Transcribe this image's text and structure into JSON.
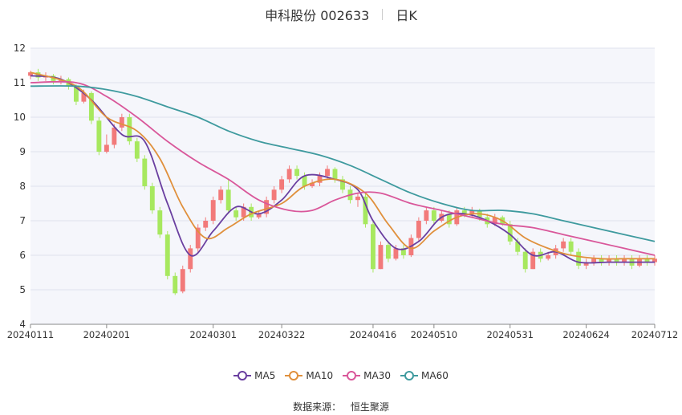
{
  "title": {
    "name": "申科股份 002633",
    "period": "日K"
  },
  "source": {
    "label": "数据来源：",
    "value": "恒生聚源"
  },
  "colors": {
    "up": "#f27a7a",
    "down": "#a7e85f",
    "MA5": "#6a3fa0",
    "MA10": "#e0903c",
    "MA30": "#d9579a",
    "MA60": "#3e9a9e",
    "plot_bg": "#f5f6fb",
    "grid": "#dfe3ee"
  },
  "chart_data": {
    "type": "candlestick",
    "title": "申科股份 002633",
    "subtitle": "日K",
    "ylim": [
      4,
      12
    ],
    "yticks": [
      4,
      5,
      6,
      7,
      8,
      9,
      10,
      11,
      12
    ],
    "xticks": [
      "20240111",
      "20240201",
      "20240301",
      "20240322",
      "20240416",
      "20240510",
      "20240531",
      "20240624",
      "20240712"
    ],
    "legend": [
      "MA5",
      "MA10",
      "MA30",
      "MA60"
    ],
    "legend_position": "bottom",
    "candles": [
      [
        11.2,
        11.3,
        11.1,
        11.35
      ],
      [
        11.3,
        11.15,
        11.05,
        11.4
      ],
      [
        11.15,
        11.2,
        11.05,
        11.3
      ],
      [
        11.2,
        11.05,
        10.95,
        11.25
      ],
      [
        11.05,
        11.1,
        10.95,
        11.2
      ],
      [
        11.1,
        10.9,
        10.8,
        11.15
      ],
      [
        10.9,
        10.45,
        10.35,
        10.95
      ],
      [
        10.45,
        10.7,
        10.4,
        10.8
      ],
      [
        10.7,
        9.9,
        9.8,
        10.75
      ],
      [
        9.9,
        9.0,
        8.9,
        10.0
      ],
      [
        9.0,
        9.2,
        8.95,
        9.5
      ],
      [
        9.2,
        9.7,
        9.1,
        9.8
      ],
      [
        9.7,
        10.0,
        9.6,
        10.1
      ],
      [
        10.0,
        9.3,
        9.2,
        10.1
      ],
      [
        9.3,
        8.8,
        8.7,
        9.4
      ],
      [
        8.8,
        8.0,
        7.9,
        8.9
      ],
      [
        8.0,
        7.3,
        7.2,
        8.1
      ],
      [
        7.3,
        6.6,
        6.5,
        7.4
      ],
      [
        6.6,
        5.4,
        5.3,
        6.7
      ],
      [
        5.4,
        4.9,
        4.85,
        5.5
      ],
      [
        4.95,
        5.6,
        4.9,
        5.7
      ],
      [
        5.6,
        6.2,
        5.5,
        6.3
      ],
      [
        6.2,
        6.8,
        6.1,
        6.9
      ],
      [
        6.8,
        7.0,
        6.7,
        7.1
      ],
      [
        7.0,
        7.6,
        6.9,
        7.7
      ],
      [
        7.6,
        7.9,
        7.5,
        8.0
      ],
      [
        7.9,
        7.3,
        7.2,
        8.2
      ],
      [
        7.3,
        7.1,
        7.0,
        7.4
      ],
      [
        7.1,
        7.4,
        7.0,
        7.5
      ],
      [
        7.4,
        7.1,
        7.0,
        7.5
      ],
      [
        7.1,
        7.2,
        7.05,
        7.3
      ],
      [
        7.2,
        7.6,
        7.1,
        7.7
      ],
      [
        7.6,
        7.9,
        7.5,
        8.0
      ],
      [
        7.9,
        8.2,
        7.8,
        8.3
      ],
      [
        8.2,
        8.5,
        8.1,
        8.6
      ],
      [
        8.5,
        8.3,
        8.2,
        8.6
      ],
      [
        8.3,
        8.0,
        7.9,
        8.4
      ],
      [
        8.0,
        8.1,
        7.95,
        8.2
      ],
      [
        8.1,
        8.3,
        8.0,
        8.4
      ],
      [
        8.3,
        8.5,
        8.2,
        8.6
      ],
      [
        8.5,
        8.2,
        8.1,
        8.55
      ],
      [
        8.2,
        7.9,
        7.8,
        8.3
      ],
      [
        7.9,
        7.6,
        7.5,
        8.0
      ],
      [
        7.6,
        7.7,
        7.4,
        7.8
      ],
      [
        7.7,
        6.9,
        6.8,
        7.8
      ],
      [
        6.9,
        5.6,
        5.5,
        7.0
      ],
      [
        5.6,
        6.3,
        5.6,
        6.4
      ],
      [
        6.3,
        5.9,
        5.8,
        6.4
      ],
      [
        5.9,
        6.2,
        5.85,
        6.3
      ],
      [
        6.2,
        6.0,
        5.9,
        6.3
      ],
      [
        6.0,
        6.5,
        5.95,
        6.6
      ],
      [
        6.5,
        7.0,
        6.4,
        7.1
      ],
      [
        7.0,
        7.3,
        6.9,
        7.4
      ],
      [
        7.3,
        7.0,
        6.9,
        7.4
      ],
      [
        7.0,
        7.2,
        6.95,
        7.3
      ],
      [
        7.2,
        6.9,
        6.8,
        7.3
      ],
      [
        6.9,
        7.3,
        6.85,
        7.4
      ],
      [
        7.3,
        7.2,
        7.1,
        7.4
      ],
      [
        7.2,
        7.3,
        7.1,
        7.4
      ],
      [
        7.3,
        7.1,
        7.0,
        7.35
      ],
      [
        7.1,
        6.9,
        6.8,
        7.2
      ],
      [
        6.9,
        7.1,
        6.85,
        7.2
      ],
      [
        7.1,
        6.9,
        6.85,
        7.15
      ],
      [
        6.9,
        6.4,
        6.3,
        7.0
      ],
      [
        6.4,
        6.1,
        6.0,
        6.5
      ],
      [
        6.1,
        5.6,
        5.5,
        6.2
      ],
      [
        5.6,
        6.1,
        5.6,
        6.2
      ],
      [
        6.1,
        5.9,
        5.8,
        6.2
      ],
      [
        5.9,
        6.0,
        5.85,
        6.1
      ],
      [
        6.0,
        6.2,
        5.9,
        6.3
      ],
      [
        6.2,
        6.4,
        6.1,
        6.5
      ],
      [
        6.4,
        6.1,
        6.0,
        6.5
      ],
      [
        6.1,
        5.7,
        5.6,
        6.2
      ],
      [
        5.7,
        5.8,
        5.6,
        5.9
      ],
      [
        5.8,
        5.9,
        5.7,
        6.0
      ],
      [
        5.9,
        5.8,
        5.7,
        6.0
      ],
      [
        5.8,
        5.9,
        5.7,
        6.0
      ],
      [
        5.9,
        5.8,
        5.7,
        6.0
      ],
      [
        5.8,
        5.9,
        5.7,
        6.0
      ],
      [
        5.9,
        5.7,
        5.6,
        6.0
      ],
      [
        5.7,
        5.9,
        5.65,
        6.0
      ],
      [
        5.9,
        5.8,
        5.7,
        6.0
      ],
      [
        5.8,
        5.9,
        5.7,
        6.0
      ]
    ],
    "ma": {
      "MA5": [
        [
          0,
          11.2
        ],
        [
          4,
          11.1
        ],
        [
          8,
          10.5
        ],
        [
          12,
          9.5
        ],
        [
          15,
          9.3
        ],
        [
          18,
          7.5
        ],
        [
          21,
          6.0
        ],
        [
          24,
          6.7
        ],
        [
          27,
          7.4
        ],
        [
          30,
          7.2
        ],
        [
          33,
          7.6
        ],
        [
          36,
          8.3
        ],
        [
          40,
          8.2
        ],
        [
          43,
          7.9
        ],
        [
          45,
          7.0
        ],
        [
          48,
          6.2
        ],
        [
          51,
          6.4
        ],
        [
          54,
          7.1
        ],
        [
          57,
          7.2
        ],
        [
          60,
          7.0
        ],
        [
          63,
          6.6
        ],
        [
          66,
          6.0
        ],
        [
          69,
          6.1
        ],
        [
          72,
          5.8
        ],
        [
          76,
          5.8
        ],
        [
          79,
          5.8
        ],
        [
          82,
          5.8
        ]
      ],
      "MA10": [
        [
          0,
          11.3
        ],
        [
          6,
          10.9
        ],
        [
          10,
          10.0
        ],
        [
          14,
          9.6
        ],
        [
          17,
          8.8
        ],
        [
          20,
          7.4
        ],
        [
          23,
          6.5
        ],
        [
          26,
          6.8
        ],
        [
          29,
          7.2
        ],
        [
          33,
          7.5
        ],
        [
          36,
          8.0
        ],
        [
          40,
          8.2
        ],
        [
          44,
          7.8
        ],
        [
          47,
          6.9
        ],
        [
          50,
          6.2
        ],
        [
          53,
          6.7
        ],
        [
          56,
          7.1
        ],
        [
          59,
          7.2
        ],
        [
          62,
          7.0
        ],
        [
          65,
          6.5
        ],
        [
          68,
          6.2
        ],
        [
          71,
          6.0
        ],
        [
          75,
          5.9
        ],
        [
          78,
          5.9
        ],
        [
          82,
          5.9
        ]
      ],
      "MA30": [
        [
          0,
          11.0
        ],
        [
          6,
          11.0
        ],
        [
          10,
          10.6
        ],
        [
          14,
          10.0
        ],
        [
          18,
          9.3
        ],
        [
          22,
          8.7
        ],
        [
          26,
          8.2
        ],
        [
          30,
          7.6
        ],
        [
          34,
          7.3
        ],
        [
          37,
          7.3
        ],
        [
          40,
          7.6
        ],
        [
          43,
          7.8
        ],
        [
          46,
          7.8
        ],
        [
          50,
          7.5
        ],
        [
          54,
          7.3
        ],
        [
          58,
          7.1
        ],
        [
          62,
          6.9
        ],
        [
          66,
          6.8
        ],
        [
          70,
          6.6
        ],
        [
          74,
          6.4
        ],
        [
          78,
          6.2
        ],
        [
          82,
          6.0
        ]
      ],
      "MA60": [
        [
          0,
          10.9
        ],
        [
          6,
          10.9
        ],
        [
          10,
          10.8
        ],
        [
          14,
          10.6
        ],
        [
          18,
          10.3
        ],
        [
          22,
          10.0
        ],
        [
          26,
          9.6
        ],
        [
          30,
          9.3
        ],
        [
          34,
          9.1
        ],
        [
          38,
          8.9
        ],
        [
          42,
          8.6
        ],
        [
          46,
          8.2
        ],
        [
          50,
          7.8
        ],
        [
          54,
          7.5
        ],
        [
          58,
          7.3
        ],
        [
          62,
          7.3
        ],
        [
          66,
          7.2
        ],
        [
          70,
          7.0
        ],
        [
          74,
          6.8
        ],
        [
          78,
          6.6
        ],
        [
          82,
          6.4
        ]
      ]
    }
  }
}
